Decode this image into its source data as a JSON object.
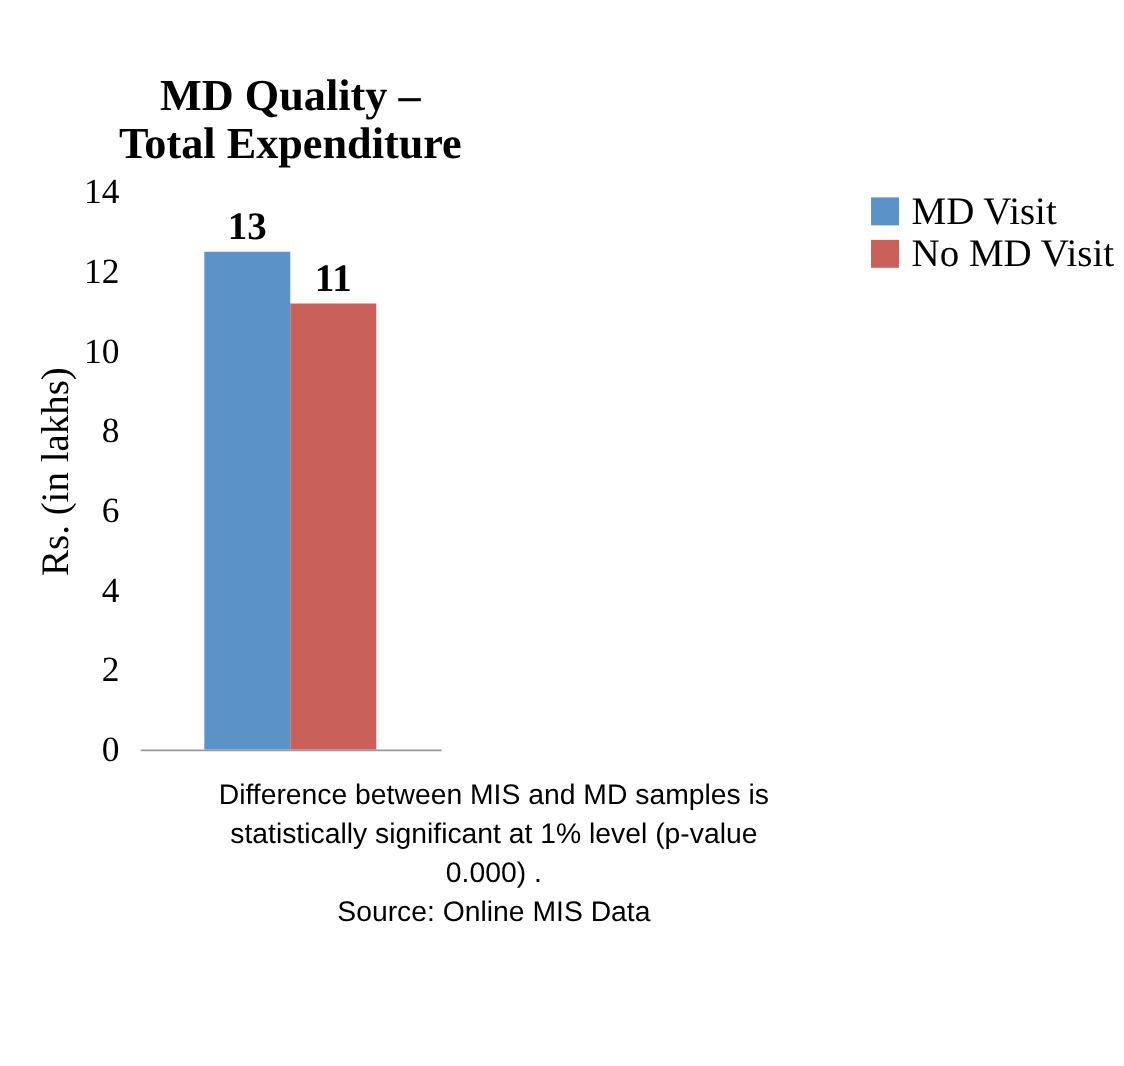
{
  "chart_data": {
    "type": "bar",
    "title": "MD Quality –\nTotal Expenditure",
    "ylabel": "Rs. (in lakhs)",
    "categories": [
      null
    ],
    "series": [
      {
        "name": "MD Visit",
        "color": "#5b93c9",
        "values": [
          12.5
        ],
        "value_labels": [
          "13"
        ]
      },
      {
        "name": "No MD Visit",
        "color": "#c9605a",
        "values": [
          11.2
        ],
        "value_labels": [
          "11"
        ]
      }
    ],
    "ylim": [
      0,
      14
    ],
    "yticks": [
      0,
      2,
      4,
      6,
      8,
      10,
      12,
      14
    ],
    "grid": false,
    "legend": "right",
    "annotations": [
      "Difference between MIS and MD samples is statistically significant at 1% level (p-value 0.000) .",
      "Source: Online MIS Data"
    ]
  }
}
